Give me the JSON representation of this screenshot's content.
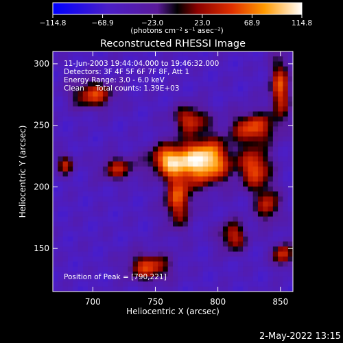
{
  "chart_data": {
    "type": "heatmap",
    "title": "Reconstructed RHESSI Image",
    "xlabel": "Heliocentric X (arcsec)",
    "ylabel": "Heliocentric Y (arcsec)",
    "xlim": [
      668,
      860
    ],
    "ylim": [
      115,
      310
    ],
    "x_ticks": [
      700,
      750,
      800,
      850
    ],
    "y_ticks": [
      150,
      200,
      250,
      300
    ],
    "colorbar": {
      "label": "(photons cm⁻² s⁻¹ asec⁻²)",
      "range": [
        -114.8,
        114.8
      ],
      "ticks": [
        "−114.8",
        "−68.9",
        "−23.0",
        "23.0",
        "68.9",
        "114.8"
      ],
      "tick_values": [
        -114.8,
        -68.9,
        -23.0,
        23.0,
        68.9,
        114.8
      ]
    },
    "annotations": [
      "11-Jun-2003 19:44:04.000 to 19:46:32.000",
      "Detectors: 3F 4F 5F 6F 7F 8F, Att 1",
      "Energy Range: 3.0 - 6.0 keV",
      "Clean     Total counts: 1.39E+03"
    ],
    "peak_label": "Position of Peak = [790,221]",
    "peak": [
      790,
      221
    ],
    "sources": [
      {
        "x": 790,
        "y": 221,
        "sx": 14,
        "sy": 13,
        "amp": 114.8
      },
      {
        "x": 760,
        "y": 222,
        "sx": 11,
        "sy": 9,
        "amp": 72
      },
      {
        "x": 830,
        "y": 215,
        "sx": 9,
        "sy": 12,
        "amp": 58
      },
      {
        "x": 768,
        "y": 190,
        "sx": 8,
        "sy": 16,
        "amp": 50
      },
      {
        "x": 828,
        "y": 248,
        "sx": 12,
        "sy": 9,
        "amp": 55
      },
      {
        "x": 778,
        "y": 255,
        "sx": 10,
        "sy": 8,
        "amp": 42
      },
      {
        "x": 745,
        "y": 135,
        "sx": 12,
        "sy": 8,
        "amp": 50
      },
      {
        "x": 700,
        "y": 275,
        "sx": 12,
        "sy": 8,
        "amp": 48
      },
      {
        "x": 850,
        "y": 280,
        "sx": 6,
        "sy": 18,
        "amp": 52
      },
      {
        "x": 812,
        "y": 160,
        "sx": 8,
        "sy": 9,
        "amp": 38
      },
      {
        "x": 852,
        "y": 145,
        "sx": 6,
        "sy": 7,
        "amp": 45
      },
      {
        "x": 720,
        "y": 215,
        "sx": 10,
        "sy": 7,
        "amp": 30
      },
      {
        "x": 840,
        "y": 185,
        "sx": 7,
        "sy": 10,
        "amp": 35
      },
      {
        "x": 678,
        "y": 218,
        "sx": 5,
        "sy": 6,
        "amp": 30
      }
    ],
    "background_level": -55
  },
  "timestamp": "2-May-2022 13:15"
}
